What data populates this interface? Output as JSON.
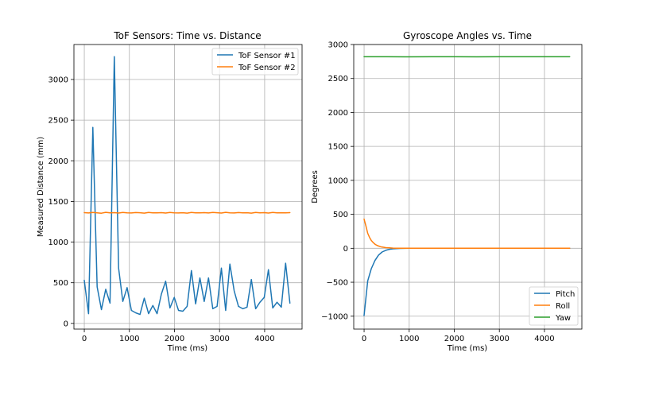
{
  "colors": {
    "blue": "#1f77b4",
    "orange": "#ff7f0e",
    "green": "#2ca02c",
    "grid": "#b0b0b0"
  },
  "chart_data": [
    {
      "type": "line",
      "title": "ToF Sensors: Time vs. Distance",
      "xlabel": "Time (ms)",
      "ylabel": "Measured Distance (mm)",
      "xlim": [
        -230,
        4830
      ],
      "ylim": [
        -70,
        3430
      ],
      "xticks": [
        0,
        1000,
        2000,
        3000,
        4000
      ],
      "yticks": [
        0,
        500,
        1000,
        1500,
        2000,
        2500,
        3000
      ],
      "grid": true,
      "legend_position": "upper right",
      "series": [
        {
          "name": "ToF Sensor #1",
          "color": "#1f77b4",
          "x": [
            0,
            95,
            190,
            285,
            380,
            475,
            570,
            665,
            760,
            855,
            950,
            1045,
            1140,
            1235,
            1330,
            1425,
            1520,
            1615,
            1710,
            1805,
            1900,
            1995,
            2090,
            2185,
            2280,
            2375,
            2470,
            2565,
            2660,
            2755,
            2850,
            2945,
            3040,
            3135,
            3230,
            3325,
            3420,
            3515,
            3610,
            3705,
            3800,
            3895,
            3990,
            4085,
            4180,
            4275,
            4370,
            4465,
            4560
          ],
          "y": [
            530,
            120,
            2410,
            450,
            170,
            420,
            250,
            3280,
            680,
            270,
            440,
            160,
            130,
            110,
            310,
            120,
            220,
            120,
            360,
            520,
            190,
            320,
            160,
            150,
            210,
            650,
            240,
            560,
            270,
            560,
            180,
            210,
            680,
            160,
            730,
            400,
            210,
            180,
            200,
            540,
            180,
            260,
            320,
            660,
            190,
            260,
            200,
            740,
            250
          ]
        },
        {
          "name": "ToF Sensor #2",
          "color": "#ff7f0e",
          "x": [
            0,
            95,
            190,
            285,
            380,
            475,
            570,
            665,
            760,
            855,
            950,
            1045,
            1140,
            1235,
            1330,
            1425,
            1520,
            1615,
            1710,
            1805,
            1900,
            1995,
            2090,
            2185,
            2280,
            2375,
            2470,
            2565,
            2660,
            2755,
            2850,
            2945,
            3040,
            3135,
            3230,
            3325,
            3420,
            3515,
            3610,
            3705,
            3800,
            3895,
            3990,
            4085,
            4180,
            4275,
            4370,
            4465,
            4560
          ],
          "y": [
            1362,
            1358,
            1365,
            1360,
            1355,
            1366,
            1359,
            1362,
            1357,
            1364,
            1360,
            1358,
            1363,
            1361,
            1356,
            1365,
            1359,
            1360,
            1362,
            1357,
            1364,
            1360,
            1358,
            1361,
            1356,
            1365,
            1360,
            1359,
            1362,
            1358,
            1364,
            1361,
            1357,
            1366,
            1360,
            1358,
            1363,
            1359,
            1361,
            1356,
            1364,
            1360,
            1362,
            1357,
            1365,
            1359,
            1361,
            1360,
            1362
          ]
        }
      ]
    },
    {
      "type": "line",
      "title": "Gyroscope Angles vs. Time",
      "xlabel": "Time (ms)",
      "ylabel": "Degrees",
      "xlim": [
        -230,
        4830
      ],
      "ylim": [
        -1190,
        3000
      ],
      "xticks": [
        0,
        1000,
        2000,
        3000,
        4000
      ],
      "yticks": [
        -1000,
        -500,
        0,
        500,
        1000,
        1500,
        2000,
        2500,
        3000
      ],
      "grid": true,
      "legend_position": "lower right",
      "series": [
        {
          "name": "Pitch",
          "color": "#1f77b4",
          "x": [
            0,
            80,
            160,
            240,
            320,
            400,
            480,
            560,
            640,
            720,
            800,
            900,
            1000,
            1500,
            2000,
            2500,
            3000,
            3500,
            4000,
            4560
          ],
          "y": [
            -990,
            -480,
            -300,
            -180,
            -100,
            -55,
            -30,
            -15,
            -8,
            -4,
            -2,
            -1,
            0,
            0,
            0,
            0,
            0,
            0,
            0,
            0
          ]
        },
        {
          "name": "Roll",
          "color": "#ff7f0e",
          "x": [
            0,
            40,
            80,
            120,
            160,
            200,
            240,
            280,
            320,
            360,
            400,
            480,
            560,
            640,
            720,
            800,
            900,
            1000,
            1500,
            2000,
            2500,
            3000,
            3500,
            4000,
            4560
          ],
          "y": [
            430,
            330,
            220,
            160,
            115,
            85,
            60,
            45,
            33,
            24,
            18,
            10,
            6,
            3,
            2,
            1,
            0,
            0,
            0,
            0,
            0,
            0,
            0,
            0,
            0
          ]
        },
        {
          "name": "Yaw",
          "color": "#2ca02c",
          "x": [
            0,
            500,
            1000,
            1500,
            2000,
            2500,
            3000,
            3500,
            4000,
            4560
          ],
          "y": [
            2820,
            2820,
            2819,
            2820,
            2820,
            2819,
            2820,
            2820,
            2820,
            2820
          ]
        }
      ]
    }
  ]
}
